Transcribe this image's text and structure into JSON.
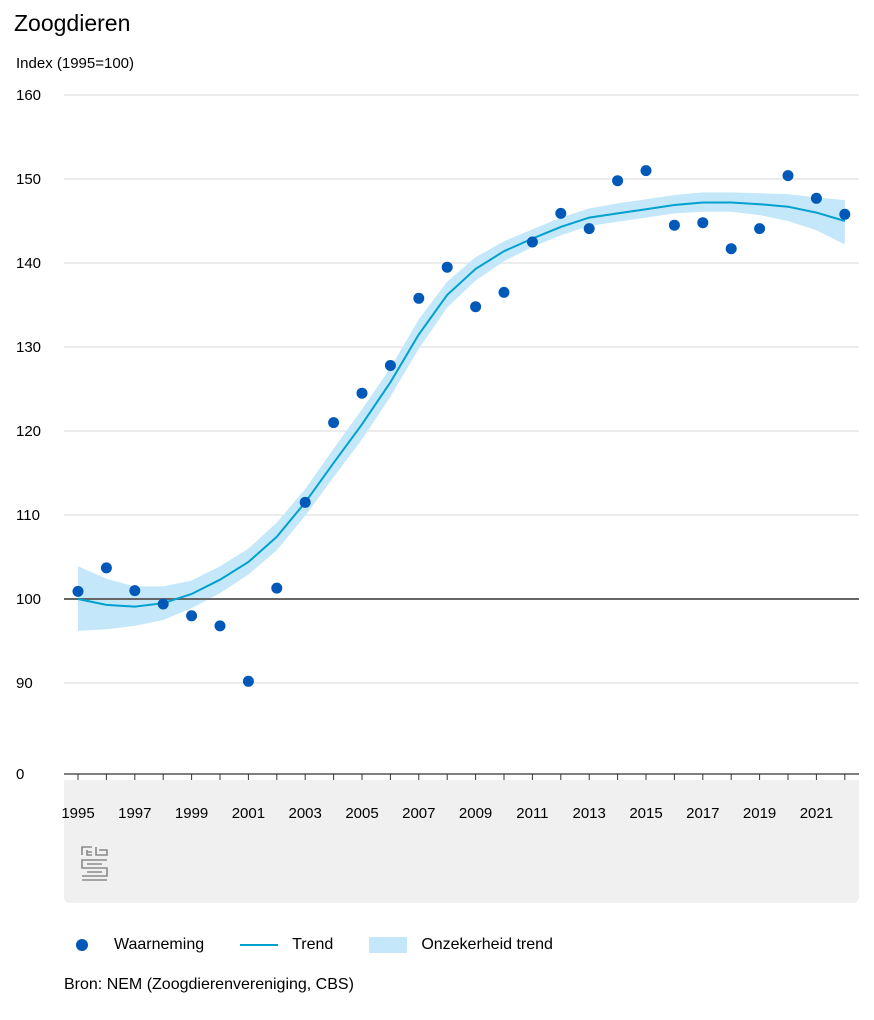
{
  "title": "Zoogdieren",
  "unit_label": "Index (1995=100)",
  "source": "Bron: NEM (Zoogdierenvereniging, CBS)",
  "legend": {
    "observation": "Waarneming",
    "trend": "Trend",
    "uncertainty": "Onzekerheid trend"
  },
  "colors": {
    "points": "#0058b8",
    "trend": "#00a1cd",
    "band": "#c4e8f9",
    "reference": "#666666",
    "grid": "#d9d9d9",
    "footer_bg": "#f0f0f0"
  },
  "icons": {
    "logo": "cbs-logo-icon"
  },
  "chart_data": {
    "type": "line",
    "ylim": [
      0,
      160
    ],
    "y_ticks": [
      0,
      90,
      100,
      110,
      120,
      130,
      140,
      150,
      160
    ],
    "y_axis_break": "0-90",
    "x_ticks": [
      "1995",
      "1997",
      "1999",
      "2001",
      "2003",
      "2005",
      "2007",
      "2009",
      "2011",
      "2013",
      "2015",
      "2017",
      "2019",
      "2021"
    ],
    "reference_line": 100,
    "grid": true,
    "legend_position": "bottom",
    "x": [
      1995,
      1996,
      1997,
      1998,
      1999,
      2000,
      2001,
      2002,
      2003,
      2004,
      2005,
      2006,
      2007,
      2008,
      2009,
      2010,
      2011,
      2012,
      2013,
      2014,
      2015,
      2016,
      2017,
      2018,
      2019,
      2020,
      2021,
      2022
    ],
    "series": [
      {
        "name": "Waarneming",
        "kind": "scatter",
        "values": [
          100.9,
          103.7,
          101.0,
          99.4,
          98.0,
          96.8,
          90.2,
          101.3,
          111.5,
          121.0,
          124.5,
          127.8,
          135.8,
          139.5,
          134.8,
          136.5,
          142.5,
          145.9,
          144.1,
          149.8,
          151.0,
          144.5,
          144.8,
          141.7,
          144.1,
          150.4,
          147.7,
          145.8
        ]
      },
      {
        "name": "Trend",
        "kind": "line",
        "values": [
          100.0,
          99.3,
          99.1,
          99.5,
          100.6,
          102.3,
          104.4,
          107.4,
          111.5,
          116.2,
          120.8,
          125.8,
          131.5,
          136.2,
          139.3,
          141.4,
          142.9,
          144.3,
          145.4,
          145.9,
          146.4,
          146.9,
          147.2,
          147.2,
          147.0,
          146.7,
          146.0,
          145.0
        ]
      },
      {
        "name": "Onzekerheid trend",
        "kind": "band",
        "lower": [
          96.2,
          96.4,
          96.8,
          97.5,
          98.9,
          100.7,
          102.9,
          105.8,
          109.9,
          114.5,
          119.0,
          124.1,
          129.8,
          134.7,
          137.9,
          140.2,
          141.9,
          143.3,
          144.4,
          144.9,
          145.4,
          145.9,
          146.1,
          146.1,
          145.7,
          145.0,
          143.9,
          142.2
        ],
        "upper": [
          103.9,
          102.4,
          101.5,
          101.5,
          102.2,
          103.9,
          106.0,
          109.1,
          113.1,
          117.9,
          122.6,
          127.5,
          133.3,
          137.8,
          140.7,
          142.6,
          144.0,
          145.4,
          146.5,
          147.1,
          147.6,
          148.1,
          148.4,
          148.4,
          148.3,
          148.2,
          147.8,
          147.5
        ]
      }
    ]
  }
}
